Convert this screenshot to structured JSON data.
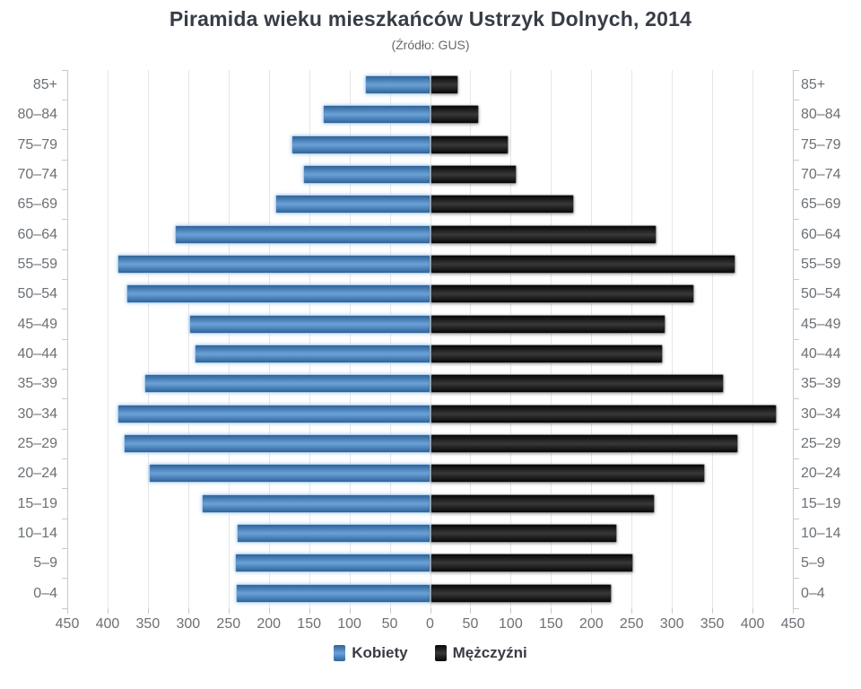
{
  "header": {
    "title": "Piramida wieku mieszkańców Ustrzyk Dolnych, 2014",
    "subtitle": "(Źródło: GUS)"
  },
  "chart_data": {
    "type": "bar",
    "variant": "population-pyramid",
    "title": "Piramida wieku mieszkańców Ustrzyk Dolnych, 2014",
    "subtitle": "(Źródło: GUS)",
    "categories_top_to_bottom": [
      "85+",
      "80–84",
      "75–79",
      "70–74",
      "65–69",
      "60–64",
      "55–59",
      "50–54",
      "45–49",
      "40–44",
      "35–39",
      "30–34",
      "25–29",
      "20–24",
      "15–19",
      "10–14",
      "5–9",
      "0–4"
    ],
    "series": [
      {
        "name": "Kobiety",
        "side": "left",
        "color_edge": "#2f6399",
        "color_mid": "#6aa2d8",
        "border_color": "#aed0ee",
        "values": [
          79,
          131,
          170,
          155,
          190,
          314,
          385,
          374,
          297,
          290,
          352,
          385,
          378,
          347,
          281,
          237,
          240,
          239
        ]
      },
      {
        "name": "Mężczyźni",
        "side": "right",
        "color_edge": "#070707",
        "color_mid": "#383838",
        "border_color": "#8f8f8f",
        "values": [
          33,
          58,
          95,
          105,
          176,
          279,
          377,
          325,
          290,
          286,
          362,
          428,
          380,
          339,
          277,
          230,
          250,
          223
        ]
      }
    ],
    "x_axis": {
      "max": 450,
      "tick_step": 50,
      "tick_labels": [
        "450",
        "400",
        "350",
        "300",
        "250",
        "200",
        "150",
        "100",
        "50",
        "0",
        "50",
        "100",
        "150",
        "200",
        "250",
        "300",
        "350",
        "400",
        "450"
      ]
    },
    "grid": {
      "gridline_color": "#e6e6e6",
      "axis_color": "#c9c9c9",
      "grid_on": true
    },
    "text_color": "#6b7075",
    "legend": {
      "position": "bottom",
      "labels": [
        "Kobiety",
        "Mężczyźni"
      ]
    }
  }
}
